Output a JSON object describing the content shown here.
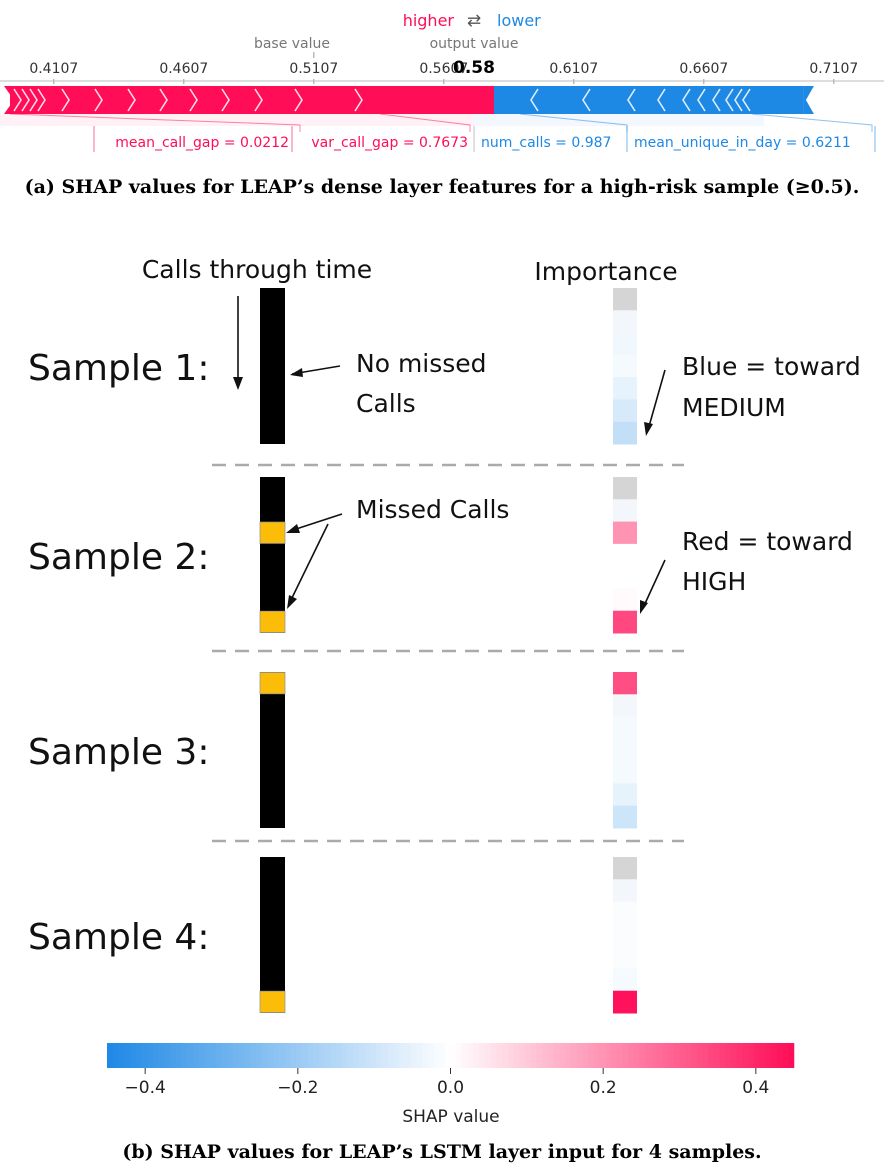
{
  "force_plot": {
    "higher_label": "higher",
    "arrows_glyph": "⇄",
    "lower_label": "lower",
    "base_value_label": "base value",
    "output_value_label": "output value",
    "output_value": "0.58",
    "base_value": 0.5107,
    "axis_min": 0.39,
    "axis_max": 0.73,
    "ticks": [
      {
        "value": 0.4107,
        "label": "0.4107"
      },
      {
        "value": 0.4607,
        "label": "0.4607"
      },
      {
        "value": 0.5107,
        "label": "0.5107"
      },
      {
        "value": 0.5607,
        "label": "0.5607"
      },
      {
        "value": 0.6107,
        "label": "0.6107"
      },
      {
        "value": 0.6607,
        "label": "0.6607"
      },
      {
        "value": 0.7107,
        "label": "0.7107"
      }
    ],
    "positive_features": [
      {
        "label": "mean_call_gap = 0.0212"
      },
      {
        "label": "var_call_gap = 0.7673"
      }
    ],
    "negative_features": [
      {
        "label": "num_calls = 0.987"
      },
      {
        "label": "mean_unique_in_day = 0.6211"
      }
    ],
    "higher_color": "#ff0d57",
    "lower_color": "#1e88e5"
  },
  "caption_a": "(a) SHAP values for LEAP’s dense layer features for a high-risk sample (≥0.5).",
  "lstm": {
    "calls_header": "Calls through time",
    "importance_header": "Importance",
    "samples": [
      {
        "label": "Sample 1:",
        "missed_positions": [],
        "importance": [
          0.0,
          0.0,
          -0.03,
          -0.02,
          -0.05,
          -0.08,
          -0.12
        ]
      },
      {
        "label": "Sample 2:",
        "missed_positions": [
          2,
          6
        ],
        "importance": [
          0.0,
          0.0,
          0.2,
          0.0,
          0.0,
          0.01,
          0.34
        ]
      },
      {
        "label": "Sample 3:",
        "missed_positions": [
          0
        ],
        "importance": [
          0.33,
          0.0,
          -0.02,
          -0.02,
          -0.02,
          -0.05,
          -0.1
        ]
      },
      {
        "label": "Sample 4:",
        "missed_positions": [
          6
        ],
        "importance": [
          0.0,
          0.0,
          -0.01,
          -0.01,
          -0.01,
          -0.02,
          0.44
        ]
      }
    ],
    "annotations": {
      "no_missed": "No missed",
      "no_missed_2": "Calls",
      "blue_1": "Blue = toward",
      "blue_2": "MEDIUM",
      "missed_calls": "Missed Calls",
      "red_1": "Red = toward",
      "red_2": "HIGH"
    },
    "call_color": "#000000",
    "missed_color": "#fbbd08",
    "colorbar": {
      "min": -0.45,
      "max": 0.45,
      "ticks": [
        {
          "value": -0.4,
          "label": "−0.4"
        },
        {
          "value": -0.2,
          "label": "−0.2"
        },
        {
          "value": 0.0,
          "label": "0.0"
        },
        {
          "value": 0.2,
          "label": "0.2"
        },
        {
          "value": 0.4,
          "label": "0.4"
        }
      ],
      "label": "SHAP value"
    }
  },
  "caption_b": "(b) SHAP values for LEAP’s LSTM layer input for 4 samples.",
  "chart_data": [
    {
      "type": "bar",
      "subtype": "shap-force-plot",
      "base_value": 0.5107,
      "output_value": 0.58,
      "xlim": [
        0.39,
        0.73
      ],
      "series": [
        {
          "name": "higher",
          "features": [
            "mean_call_gap = 0.0212",
            "var_call_gap = 0.7673"
          ]
        },
        {
          "name": "lower",
          "features": [
            "num_calls = 0.987",
            "mean_unique_in_day = 0.6211"
          ]
        }
      ]
    },
    {
      "type": "heatmap",
      "categories": [
        "Sample 1:",
        "Sample 2:",
        "Sample 3:",
        "Sample 4:"
      ],
      "legend": "SHAP value",
      "vlim": [
        -0.45,
        0.45
      ]
    }
  ]
}
